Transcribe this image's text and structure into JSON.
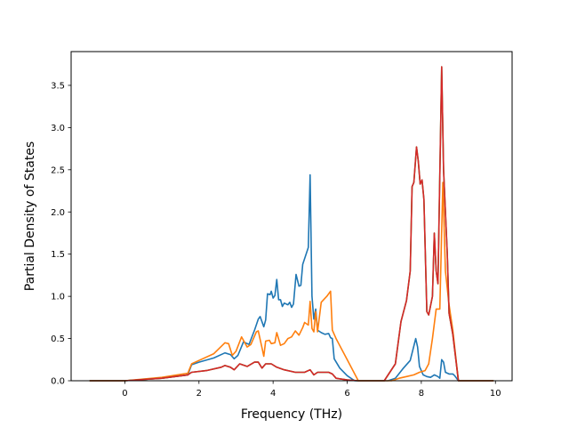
{
  "chart_data": {
    "type": "line",
    "title": "",
    "xlabel": "Frequency (THz)",
    "ylabel": "Partial Density of States",
    "xlim": [
      -1.45,
      10.45
    ],
    "ylim": [
      0,
      3.9
    ],
    "xticks": [
      0,
      2,
      4,
      6,
      8,
      10
    ],
    "xtick_labels": [
      "0",
      "2",
      "4",
      "6",
      "8",
      "10"
    ],
    "yticks": [
      0.0,
      0.5,
      1.0,
      1.5,
      2.0,
      2.5,
      3.0,
      3.5
    ],
    "ytick_labels": [
      "0.0",
      "0.5",
      "1.0",
      "1.5",
      "2.0",
      "2.5",
      "3.0",
      "3.5"
    ],
    "grid": false,
    "legend": "none",
    "series": [
      {
        "color": "#1f77b4",
        "points": [
          [
            -0.95,
            0
          ],
          [
            0,
            0
          ],
          [
            1.0,
            0.03
          ],
          [
            1.7,
            0.07
          ],
          [
            1.8,
            0.19
          ],
          [
            2.0,
            0.22
          ],
          [
            2.4,
            0.27
          ],
          [
            2.7,
            0.33
          ],
          [
            2.85,
            0.31
          ],
          [
            2.95,
            0.26
          ],
          [
            3.05,
            0.3
          ],
          [
            3.2,
            0.46
          ],
          [
            3.35,
            0.43
          ],
          [
            3.5,
            0.6
          ],
          [
            3.6,
            0.73
          ],
          [
            3.65,
            0.76
          ],
          [
            3.75,
            0.64
          ],
          [
            3.8,
            0.72
          ],
          [
            3.85,
            1.03
          ],
          [
            3.92,
            1.02
          ],
          [
            3.95,
            1.06
          ],
          [
            4.0,
            0.98
          ],
          [
            4.05,
            1.01
          ],
          [
            4.1,
            1.2
          ],
          [
            4.15,
            0.96
          ],
          [
            4.2,
            0.96
          ],
          [
            4.25,
            0.88
          ],
          [
            4.3,
            0.92
          ],
          [
            4.4,
            0.9
          ],
          [
            4.45,
            0.93
          ],
          [
            4.5,
            0.87
          ],
          [
            4.55,
            0.91
          ],
          [
            4.62,
            1.26
          ],
          [
            4.7,
            1.12
          ],
          [
            4.75,
            1.13
          ],
          [
            4.8,
            1.38
          ],
          [
            4.95,
            1.58
          ],
          [
            5.0,
            2.44
          ],
          [
            5.05,
            1.0
          ],
          [
            5.1,
            0.73
          ],
          [
            5.15,
            0.85
          ],
          [
            5.2,
            0.6
          ],
          [
            5.3,
            0.57
          ],
          [
            5.4,
            0.55
          ],
          [
            5.5,
            0.56
          ],
          [
            5.55,
            0.51
          ],
          [
            5.6,
            0.5
          ],
          [
            5.65,
            0.26
          ],
          [
            5.8,
            0.15
          ],
          [
            6.0,
            0.06
          ],
          [
            6.2,
            0.0
          ],
          [
            7.1,
            0.0
          ],
          [
            7.3,
            0.03
          ],
          [
            7.5,
            0.14
          ],
          [
            7.7,
            0.24
          ],
          [
            7.85,
            0.5
          ],
          [
            7.9,
            0.4
          ],
          [
            7.95,
            0.17
          ],
          [
            8.05,
            0.07
          ],
          [
            8.15,
            0.05
          ],
          [
            8.25,
            0.04
          ],
          [
            8.35,
            0.07
          ],
          [
            8.45,
            0.05
          ],
          [
            8.5,
            0.03
          ],
          [
            8.55,
            0.25
          ],
          [
            8.6,
            0.22
          ],
          [
            8.65,
            0.1
          ],
          [
            8.75,
            0.08
          ],
          [
            8.85,
            0.08
          ],
          [
            8.9,
            0.06
          ],
          [
            9.0,
            0.0
          ],
          [
            9.95,
            0.0
          ]
        ]
      },
      {
        "color": "#ff7f0e",
        "points": [
          [
            -0.95,
            0
          ],
          [
            0,
            0
          ],
          [
            1.0,
            0.04
          ],
          [
            1.7,
            0.09
          ],
          [
            1.8,
            0.2
          ],
          [
            2.0,
            0.24
          ],
          [
            2.4,
            0.32
          ],
          [
            2.7,
            0.45
          ],
          [
            2.8,
            0.44
          ],
          [
            2.9,
            0.3
          ],
          [
            3.0,
            0.35
          ],
          [
            3.15,
            0.52
          ],
          [
            3.3,
            0.4
          ],
          [
            3.4,
            0.43
          ],
          [
            3.55,
            0.58
          ],
          [
            3.6,
            0.59
          ],
          [
            3.7,
            0.39
          ],
          [
            3.75,
            0.29
          ],
          [
            3.8,
            0.47
          ],
          [
            3.9,
            0.48
          ],
          [
            3.95,
            0.44
          ],
          [
            4.05,
            0.45
          ],
          [
            4.1,
            0.57
          ],
          [
            4.2,
            0.42
          ],
          [
            4.3,
            0.44
          ],
          [
            4.4,
            0.5
          ],
          [
            4.5,
            0.52
          ],
          [
            4.6,
            0.59
          ],
          [
            4.7,
            0.54
          ],
          [
            4.8,
            0.63
          ],
          [
            4.85,
            0.69
          ],
          [
            4.95,
            0.66
          ],
          [
            5.0,
            0.94
          ],
          [
            5.05,
            0.62
          ],
          [
            5.1,
            0.58
          ],
          [
            5.15,
            0.82
          ],
          [
            5.2,
            0.58
          ],
          [
            5.3,
            0.93
          ],
          [
            5.45,
            1.0
          ],
          [
            5.55,
            1.06
          ],
          [
            5.6,
            0.6
          ],
          [
            5.7,
            0.5
          ],
          [
            6.0,
            0.25
          ],
          [
            6.3,
            0.0
          ],
          [
            7.2,
            0.0
          ],
          [
            7.4,
            0.03
          ],
          [
            7.6,
            0.05
          ],
          [
            7.8,
            0.07
          ],
          [
            7.95,
            0.1
          ],
          [
            8.1,
            0.12
          ],
          [
            8.2,
            0.2
          ],
          [
            8.3,
            0.5
          ],
          [
            8.4,
            0.85
          ],
          [
            8.5,
            0.85
          ],
          [
            8.58,
            2.35
          ],
          [
            8.65,
            1.3
          ],
          [
            8.75,
            0.9
          ],
          [
            8.85,
            0.6
          ],
          [
            9.0,
            0.0
          ],
          [
            9.95,
            0.0
          ]
        ]
      },
      {
        "color": "#2ca02c",
        "points": [
          [
            -0.95,
            0
          ],
          [
            0,
            0
          ],
          [
            1.0,
            0.03
          ],
          [
            1.7,
            0.07
          ],
          [
            1.8,
            0.1
          ],
          [
            2.2,
            0.12
          ],
          [
            2.6,
            0.16
          ],
          [
            2.7,
            0.18
          ],
          [
            2.85,
            0.16
          ],
          [
            2.95,
            0.13
          ],
          [
            3.1,
            0.2
          ],
          [
            3.3,
            0.17
          ],
          [
            3.5,
            0.22
          ],
          [
            3.6,
            0.22
          ],
          [
            3.7,
            0.15
          ],
          [
            3.8,
            0.2
          ],
          [
            3.95,
            0.2
          ],
          [
            4.1,
            0.16
          ],
          [
            4.3,
            0.13
          ],
          [
            4.6,
            0.1
          ],
          [
            4.85,
            0.1
          ],
          [
            5.0,
            0.13
          ],
          [
            5.1,
            0.07
          ],
          [
            5.2,
            0.1
          ],
          [
            5.5,
            0.1
          ],
          [
            5.6,
            0.08
          ],
          [
            5.7,
            0.03
          ],
          [
            6.0,
            0.01
          ],
          [
            6.3,
            0.0
          ],
          [
            7.0,
            0.0
          ],
          [
            7.3,
            0.2
          ],
          [
            7.45,
            0.7
          ],
          [
            7.6,
            0.95
          ],
          [
            7.7,
            1.3
          ],
          [
            7.75,
            2.3
          ],
          [
            7.8,
            2.35
          ],
          [
            7.87,
            2.77
          ],
          [
            7.92,
            2.6
          ],
          [
            7.97,
            2.33
          ],
          [
            8.02,
            2.38
          ],
          [
            8.07,
            2.15
          ],
          [
            8.15,
            0.82
          ],
          [
            8.2,
            0.78
          ],
          [
            8.3,
            1.0
          ],
          [
            8.35,
            1.75
          ],
          [
            8.4,
            1.3
          ],
          [
            8.45,
            1.15
          ],
          [
            8.55,
            3.72
          ],
          [
            8.6,
            2.5
          ],
          [
            8.7,
            1.5
          ],
          [
            8.75,
            0.8
          ],
          [
            8.85,
            0.55
          ],
          [
            9.0,
            0.0
          ],
          [
            9.95,
            0.0
          ]
        ]
      },
      {
        "color": "#d62728",
        "points": [
          [
            -0.95,
            0
          ],
          [
            0,
            0
          ],
          [
            1.0,
            0.03
          ],
          [
            1.7,
            0.07
          ],
          [
            1.8,
            0.1
          ],
          [
            2.2,
            0.12
          ],
          [
            2.6,
            0.16
          ],
          [
            2.7,
            0.18
          ],
          [
            2.85,
            0.16
          ],
          [
            2.95,
            0.13
          ],
          [
            3.1,
            0.2
          ],
          [
            3.3,
            0.17
          ],
          [
            3.5,
            0.22
          ],
          [
            3.6,
            0.22
          ],
          [
            3.7,
            0.15
          ],
          [
            3.8,
            0.2
          ],
          [
            3.95,
            0.2
          ],
          [
            4.1,
            0.16
          ],
          [
            4.3,
            0.13
          ],
          [
            4.6,
            0.1
          ],
          [
            4.85,
            0.1
          ],
          [
            5.0,
            0.13
          ],
          [
            5.1,
            0.07
          ],
          [
            5.2,
            0.1
          ],
          [
            5.5,
            0.1
          ],
          [
            5.6,
            0.08
          ],
          [
            5.7,
            0.03
          ],
          [
            6.0,
            0.01
          ],
          [
            6.3,
            0.0
          ],
          [
            7.0,
            0.0
          ],
          [
            7.3,
            0.2
          ],
          [
            7.45,
            0.7
          ],
          [
            7.6,
            0.95
          ],
          [
            7.7,
            1.3
          ],
          [
            7.75,
            2.3
          ],
          [
            7.8,
            2.35
          ],
          [
            7.87,
            2.77
          ],
          [
            7.92,
            2.6
          ],
          [
            7.97,
            2.33
          ],
          [
            8.02,
            2.38
          ],
          [
            8.07,
            2.15
          ],
          [
            8.15,
            0.82
          ],
          [
            8.2,
            0.78
          ],
          [
            8.3,
            1.0
          ],
          [
            8.35,
            1.75
          ],
          [
            8.4,
            1.3
          ],
          [
            8.45,
            1.15
          ],
          [
            8.55,
            3.72
          ],
          [
            8.6,
            2.5
          ],
          [
            8.7,
            1.5
          ],
          [
            8.75,
            0.8
          ],
          [
            8.85,
            0.55
          ],
          [
            9.0,
            0.0
          ],
          [
            9.95,
            0.0
          ]
        ]
      }
    ]
  }
}
